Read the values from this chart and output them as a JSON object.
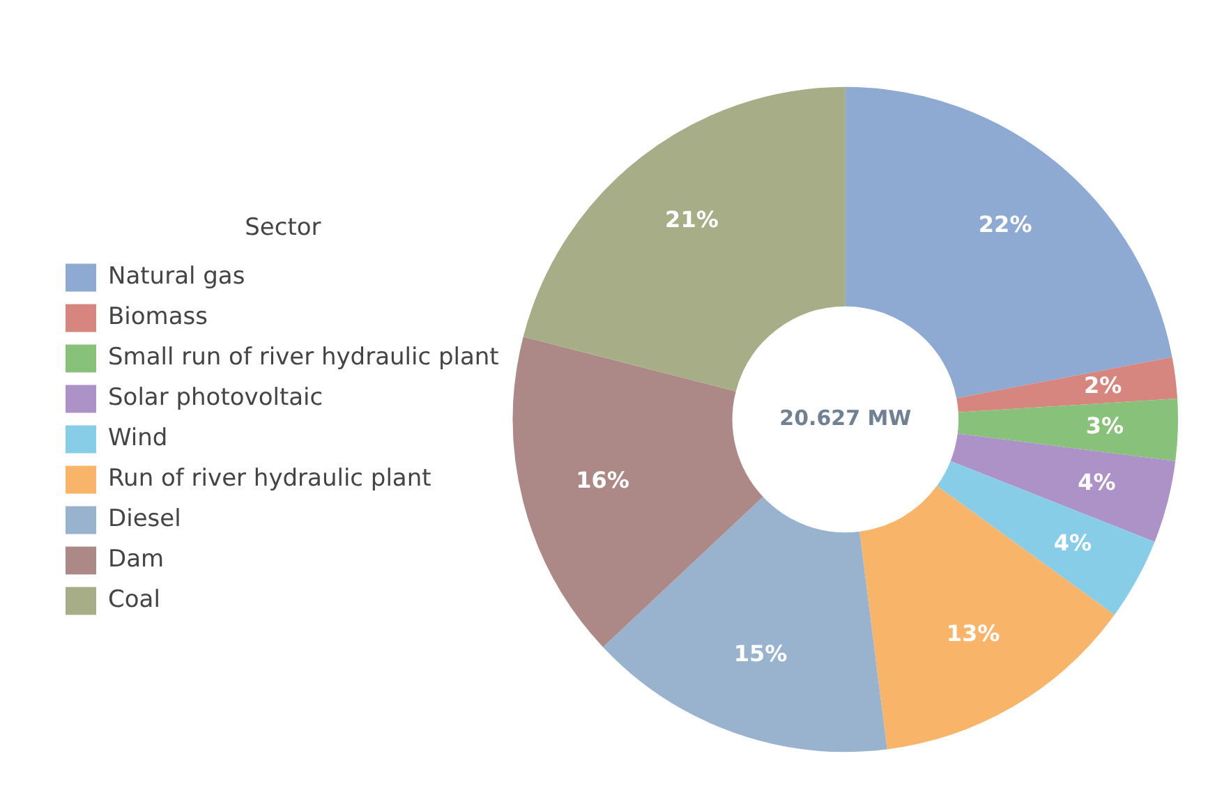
{
  "chart_data": {
    "type": "donut",
    "categories": [
      "Natural gas",
      "Biomass",
      "Small run of river hydraulic plant",
      "Solar photovoltaic",
      "Wind",
      "Run of river hydraulic plant",
      "Diesel",
      "Dam",
      "Coal"
    ],
    "values": [
      22,
      2,
      3,
      4,
      4,
      13,
      15,
      16,
      21
    ],
    "value_labels": [
      "22%",
      "2%",
      "3%",
      "4%",
      "4%",
      "13%",
      "15%",
      "16%",
      "21%"
    ],
    "colors": [
      "#8ea9d2",
      "#d6857f",
      "#88c17a",
      "#ad92c8",
      "#87cde8",
      "#f8b56a",
      "#99b3cf",
      "#ac8886",
      "#a7ad87"
    ],
    "legend_title": "Sector",
    "legend": "left",
    "annotations": [
      "20.627 MW"
    ]
  }
}
